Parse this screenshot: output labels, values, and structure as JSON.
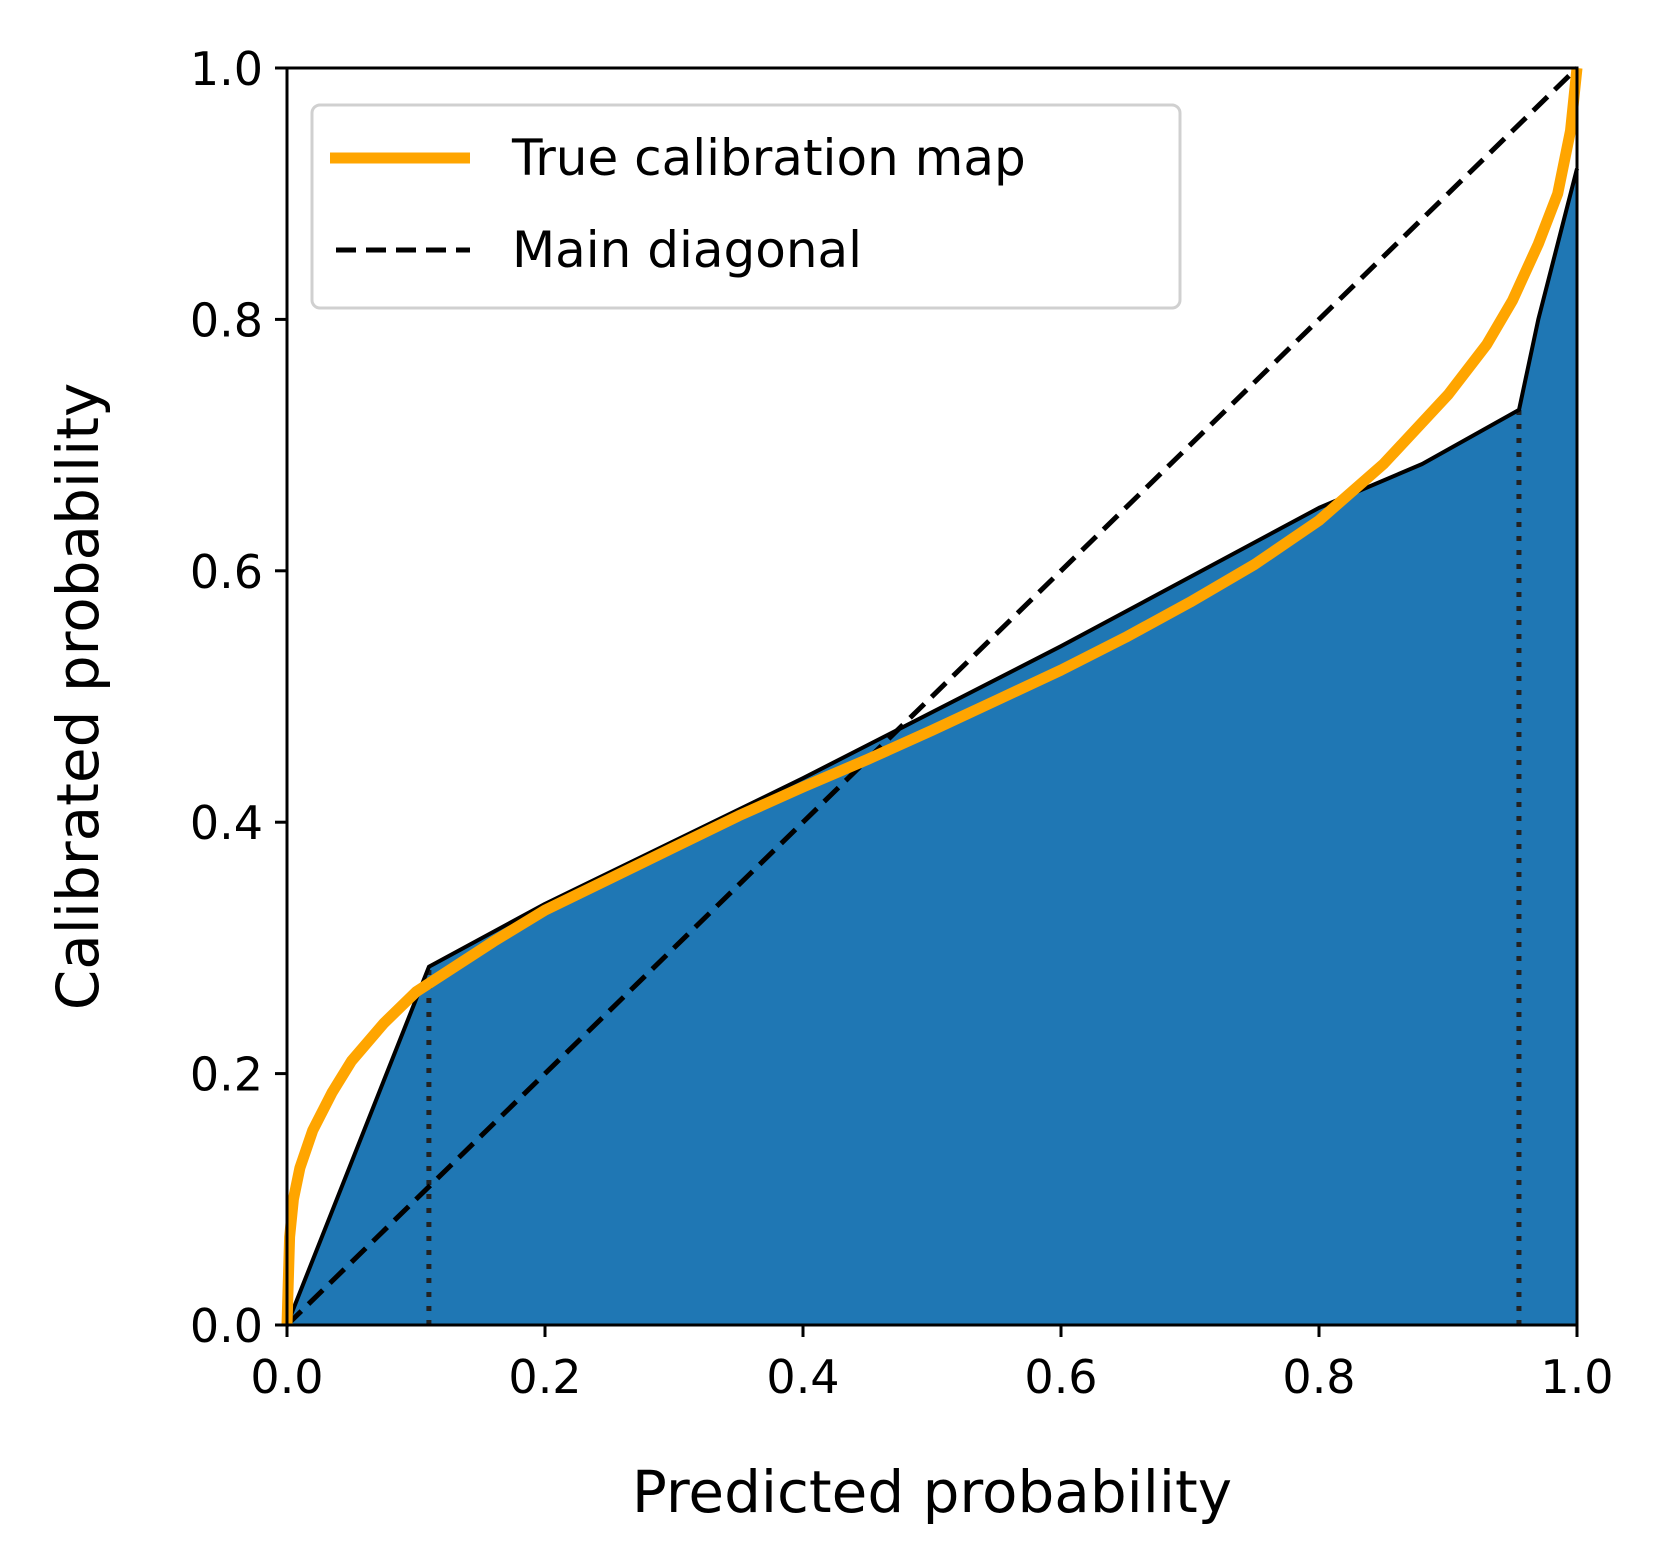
{
  "chart_data": {
    "type": "line",
    "xlabel": "Predicted probability",
    "ylabel": "Calibrated probability",
    "xlim": [
      0.0,
      1.0
    ],
    "ylim": [
      0.0,
      1.0
    ],
    "xticks": [
      "0.0",
      "0.2",
      "0.4",
      "0.6",
      "0.8",
      "1.0"
    ],
    "yticks": [
      "0.0",
      "0.2",
      "0.4",
      "0.6",
      "0.8",
      "1.0"
    ],
    "grid": false,
    "legend_position": "top-left",
    "legend": [
      {
        "label": "True calibration map",
        "color": "#ffa500",
        "style": "solid"
      },
      {
        "label": "Main diagonal",
        "color": "#000000",
        "style": "dashed"
      }
    ],
    "fill_color": "#1f77b4",
    "series": [
      {
        "name": "True calibration map",
        "color": "#ffa500",
        "x": [
          0.0,
          0.002,
          0.005,
          0.01,
          0.02,
          0.035,
          0.05,
          0.075,
          0.1,
          0.13,
          0.16,
          0.2,
          0.25,
          0.3,
          0.35,
          0.4,
          0.45,
          0.5,
          0.55,
          0.6,
          0.65,
          0.7,
          0.75,
          0.8,
          0.85,
          0.9,
          0.93,
          0.95,
          0.97,
          0.985,
          0.995,
          1.0
        ],
        "y": [
          0.0,
          0.07,
          0.1,
          0.125,
          0.155,
          0.185,
          0.21,
          0.24,
          0.265,
          0.285,
          0.305,
          0.33,
          0.355,
          0.38,
          0.405,
          0.428,
          0.45,
          0.473,
          0.497,
          0.521,
          0.547,
          0.575,
          0.605,
          0.64,
          0.685,
          0.74,
          0.78,
          0.815,
          0.86,
          0.9,
          0.95,
          1.0
        ]
      },
      {
        "name": "Main diagonal",
        "color": "#000000",
        "x": [
          0.0,
          1.0
        ],
        "y": [
          0.0,
          1.0
        ]
      },
      {
        "color": "#000000",
        "x": [
          0.0,
          0.11,
          0.2,
          0.4,
          0.6,
          0.8,
          0.88,
          0.955,
          0.97,
          1.0
        ],
        "y": [
          0.0,
          0.285,
          0.335,
          0.435,
          0.54,
          0.65,
          0.685,
          0.728,
          0.8,
          0.92
        ]
      }
    ],
    "vlines": [
      0.11,
      0.955
    ]
  }
}
